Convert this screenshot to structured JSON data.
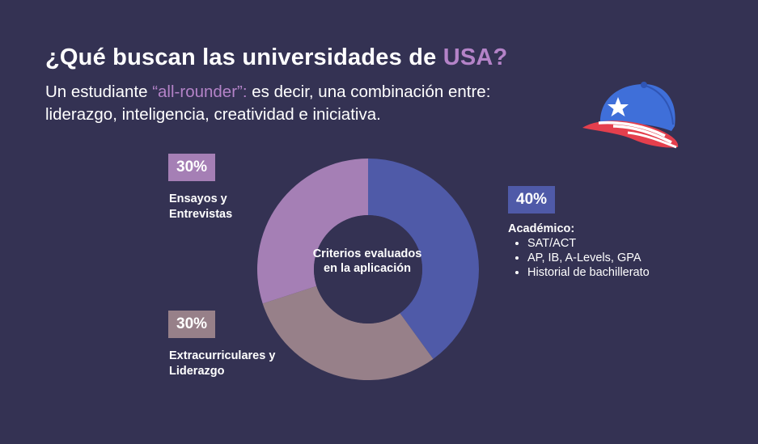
{
  "header": {
    "title_pre": "¿Qué buscan las universidades de ",
    "title_accent": "USA?",
    "subtitle_pre": "Un estudiante ",
    "subtitle_accent": "“all-rounder”:",
    "subtitle_post": " es decir, una combinación entre: liderazgo, inteligencia, creatividad e iniciativa."
  },
  "chart_data": {
    "type": "pie",
    "center_label": "Criterios evaluados en la aplicación",
    "slices": [
      {
        "label": "Académico:",
        "value": 40,
        "percent_label": "40%",
        "color": "#4f5aa8",
        "details": [
          "SAT/ACT",
          "AP, IB, A-Levels, GPA",
          "Historial de bachillerato"
        ]
      },
      {
        "label": "Extracurriculares y Liderazgo",
        "value": 30,
        "percent_label": "30%",
        "color": "#978089"
      },
      {
        "label": "Ensayos y Entrevistas",
        "value": 30,
        "percent_label": "30%",
        "color": "#a57fb5"
      }
    ]
  },
  "colors": {
    "background": "#343253",
    "accent": "#b483c8"
  },
  "icons": {
    "cap": "usa-baseball-cap-icon"
  }
}
